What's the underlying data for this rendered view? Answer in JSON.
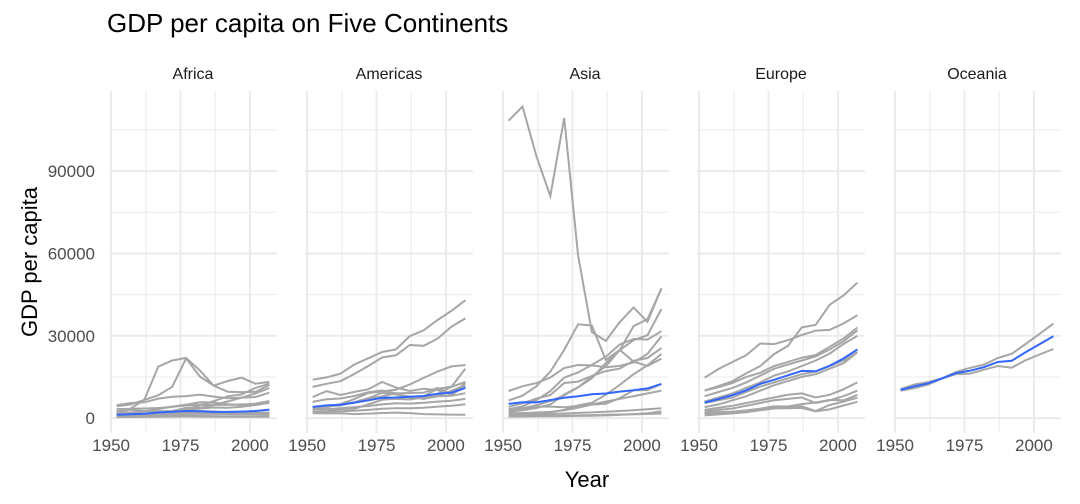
{
  "chart_data": {
    "type": "line",
    "title": "GDP per capita on Five Continents",
    "xlabel": "Year",
    "ylabel": "GDP per capita",
    "x": [
      1952,
      1957,
      1962,
      1967,
      1972,
      1977,
      1982,
      1987,
      1992,
      1997,
      2002,
      2007
    ],
    "xlim": [
      1949.25,
      2009.75
    ],
    "ylim": [
      -5423,
      119187
    ],
    "x_ticks": [
      1950,
      1975,
      2000
    ],
    "x_tick_labels": [
      "1950",
      "1975",
      "2000"
    ],
    "y_ticks": [
      0,
      30000,
      60000,
      90000
    ],
    "y_tick_labels": [
      "0",
      "30000",
      "60000",
      "90000"
    ],
    "grid": true,
    "line_color": "#a6a6a6",
    "smooth_color": "#3366ff",
    "facets": [
      {
        "name": "Africa",
        "series": [
          [
            2388,
            3448,
            6757,
            18773,
            21011,
            21951,
            17364,
            11770,
            9640,
            9467,
            9534,
            12057
          ],
          [
            4293,
            4976,
            6631,
            8358,
            11401,
            21746,
            15113,
            11864,
            13522,
            14723,
            12522,
            13206
          ],
          [
            4725,
            5487,
            5769,
            7114,
            7765,
            8028,
            8568,
            7826,
            7225,
            7479,
            7711,
            9270
          ],
          [
            851,
            918,
            984,
            1215,
            2264,
            3215,
            4551,
            6206,
            7954,
            8647,
            11004,
            12570
          ],
          [
            1968,
            2034,
            2529,
            2475,
            2575,
            3710,
            3689,
            4783,
            6058,
            7425,
            9021,
            10957
          ],
          [
            1419,
            1459,
            1693,
            1815,
            2024,
            2785,
            3503,
            3885,
            3795,
            4173,
            4754,
            5581
          ],
          [
            2449,
            3014,
            2551,
            3247,
            4183,
            4910,
            5745,
            5681,
            5023,
            4797,
            5288,
            6223
          ],
          [
            1688,
            1643,
            1635,
            1937,
            2130,
            2182,
            2605,
            2403,
            2011,
            2010,
            1905,
            2042
          ],
          [
            1173,
            1384,
            1478,
            1586,
            1778,
            2015,
            1844,
            1657,
            1648,
            1599,
            1470,
            1441
          ],
          [
            520,
            600,
            640,
            700,
            780,
            800,
            760,
            720,
            700,
            690,
            710,
            760
          ],
          [
            400,
            420,
            460,
            500,
            560,
            580,
            540,
            500,
            470,
            460,
            480,
            520
          ],
          [
            3300,
            3400,
            3500,
            3700,
            4100,
            4600,
            4800,
            4900,
            4800,
            5000,
            5100,
            5700
          ],
          [
            1100,
            1150,
            1200,
            1300,
            1400,
            1500,
            1550,
            1600,
            1500,
            1450,
            1550,
            1700
          ]
        ],
        "smooth": [
          1252,
          1385,
          1598,
          2050,
          2340,
          2586,
          2482,
          2282,
          2282,
          2379,
          2599,
          3089
        ]
      },
      {
        "name": "Americas",
        "series": [
          [
            13990,
            14847,
            16173,
            19530,
            21806,
            24073,
            25010,
            29884,
            32004,
            35767,
            39097,
            42952
          ],
          [
            11367,
            12490,
            13462,
            16077,
            18971,
            22091,
            22899,
            26627,
            26343,
            28955,
            33329,
            36319
          ],
          [
            7690,
            9802,
            8422,
            9541,
            10506,
            13144,
            11152,
            9883,
            10734,
            10166,
            8606,
            11416
          ],
          [
            3023,
            4100,
            4997,
            5621,
            6619,
            7899,
            9119,
            7389,
            7371,
            8792,
            11461,
            18009
          ],
          [
            3082,
            3908,
            5108,
            6929,
            9123,
            9770,
            10331,
            12281,
            14642,
            16999,
            18856,
            19329
          ],
          [
            5911,
            6857,
            7133,
            8053,
            9443,
            10079,
            8998,
            9140,
            9308,
            10968,
            8798,
            12779
          ],
          [
            3940,
            4316,
            4581,
            5755,
            7300,
            7800,
            7000,
            6800,
            7500,
            8000,
            10000,
            11977
          ],
          [
            3758,
            4246,
            4957,
            5788,
            7205,
            9207,
            8597,
            7825,
            8000,
            10700,
            11400,
            13172
          ],
          [
            2108,
            2487,
            3337,
            3430,
            4986,
            6660,
            7031,
            7807,
            6950,
            7958,
            8131,
            9066
          ],
          [
            1840,
            1726,
            1796,
            1452,
            1654,
            1875,
            2011,
            1823,
            1456,
            1342,
            1270,
            1202
          ],
          [
            2200,
            2400,
            2500,
            2700,
            3000,
            3400,
            3600,
            3600,
            3800,
            4200,
            4500,
            5000
          ],
          [
            3000,
            3200,
            3600,
            4000,
            4400,
            5000,
            5400,
            5300,
            5600,
            6000,
            6300,
            7000
          ]
        ],
        "smooth": [
          4079,
          4616,
          4902,
          5668,
          6491,
          7352,
          7507,
          7793,
          8045,
          8889,
          9288,
          11003
        ]
      },
      {
        "name": "Asia",
        "series": [
          [
            108382,
            113523,
            95458,
            80895,
            109348,
            59265,
            31354,
            28118,
            34933,
            40301,
            35110,
            47307
          ],
          [
            6459,
            8157,
            11626,
            16903,
            24837,
            34168,
            33693,
            21198,
            24841,
            20586,
            19014,
            21655
          ],
          [
            3217,
            4317,
            6577,
            9847,
            14779,
            16610,
            19384,
            22376,
            26825,
            28817,
            28605,
            31656
          ],
          [
            2315,
            2844,
            3675,
            4977,
            8597,
            11210,
            15169,
            18862,
            24769,
            33519,
            36023,
            47143
          ],
          [
            3054,
            3629,
            4693,
            6198,
            8316,
            11186,
            14560,
            20038,
            24757,
            28378,
            30209,
            39725
          ],
          [
            4087,
            5386,
            7106,
            8394,
            12786,
            13306,
            15367,
            17123,
            18051,
            20896,
            21906,
            25523
          ],
          [
            9867,
            11636,
            12753,
            14805,
            18269,
            19340,
            19211,
            18524,
            19036,
            20292,
            23404,
            29796
          ],
          [
            1031,
            1487,
            1536,
            2029,
            3031,
            4657,
            5622,
            8533,
            12104,
            15994,
            19234,
            23348
          ],
          [
            3035,
            3291,
            4187,
            4188,
            3946,
            4429,
            5000,
            6000,
            7000,
            8000,
            9000,
            10000
          ],
          [
            1831,
            1810,
            2037,
            2278,
            2849,
            3828,
            4920,
            5249,
            7277,
            10132,
            10207,
            12452
          ],
          [
            546,
            590,
            658,
            700,
            724,
            813,
            856,
            977,
            1164,
            1459,
            1747,
            2452
          ],
          [
            1200,
            1300,
            1400,
            1500,
            1700,
            1900,
            2100,
            2300,
            2600,
            2900,
            3200,
            3600
          ],
          [
            700,
            750,
            800,
            850,
            900,
            1000,
            1100,
            1200,
            1300,
            1400,
            1500,
            1700
          ]
        ],
        "smooth": [
          5195,
          5787,
          5730,
          6580,
          7386,
          7944,
          8666,
          8955,
          9667,
          10174,
          10818,
          12473
        ]
      },
      {
        "name": "Europe",
        "series": [
          [
            10095,
            11654,
            13450,
            16362,
            18966,
            23311,
            26299,
            33036,
            33966,
            41283,
            44684,
            49357
          ],
          [
            14734,
            17909,
            20431,
            22966,
            27195,
            26982,
            28398,
            30282,
            31871,
            32136,
            34481,
            37506
          ],
          [
            1601,
            1942,
            2313,
            2760,
            3313,
            3533,
            3631,
            3739,
            2497,
            3193,
            4604,
            5937
          ],
          [
            974,
            1354,
            1710,
            2172,
            2860,
            3528,
            4127,
            4314,
            2546,
            4766,
            6019,
            7446
          ],
          [
            1969,
            2219,
            2323,
            2826,
            3451,
            4269,
            4241,
            5089,
            5678,
            6601,
            6508,
            8458
          ],
          [
            9980,
            11284,
            12790,
            15000,
            16500,
            19000,
            20500,
            22000,
            23000,
            26000,
            29000,
            33000
          ],
          [
            8000,
            9500,
            11000,
            13000,
            15500,
            18000,
            19500,
            21000,
            22500,
            25000,
            28000,
            32000
          ],
          [
            6000,
            7500,
            9000,
            11000,
            13000,
            15500,
            17000,
            19000,
            21000,
            23500,
            27000,
            30000
          ],
          [
            4000,
            5000,
            6500,
            8000,
            10000,
            12000,
            13500,
            15000,
            16000,
            18000,
            20000,
            24000
          ],
          [
            3000,
            3800,
            4500,
            5500,
            6500,
            7500,
            8500,
            9000,
            7500,
            8500,
            10500,
            13000
          ],
          [
            2500,
            3000,
            3500,
            4500,
            5500,
            6500,
            7000,
            7500,
            5500,
            6500,
            8000,
            10000
          ],
          [
            5500,
            6500,
            7500,
            9500,
            11500,
            13000,
            14500,
            16000,
            17000,
            19000,
            21000,
            24000
          ]
        ],
        "smooth": [
          5661,
          6963,
          8365,
          10143,
          12480,
          13970,
          15618,
          17214,
          17062,
          19077,
          21712,
          25054
        ]
      },
      {
        "name": "Oceania",
        "series": [
          [
            10040,
            10950,
            12217,
            14526,
            16789,
            18334,
            19477,
            21889,
            23425,
            26998,
            30688,
            34435
          ],
          [
            10557,
            12247,
            13176,
            14464,
            16046,
            16234,
            17632,
            19007,
            18363,
            21050,
            23190,
            25185
          ]
        ],
        "smooth": [
          10298,
          11599,
          12696,
          14495,
          16418,
          17284,
          18555,
          20448,
          20894,
          24024,
          26939,
          29810
        ]
      }
    ]
  }
}
